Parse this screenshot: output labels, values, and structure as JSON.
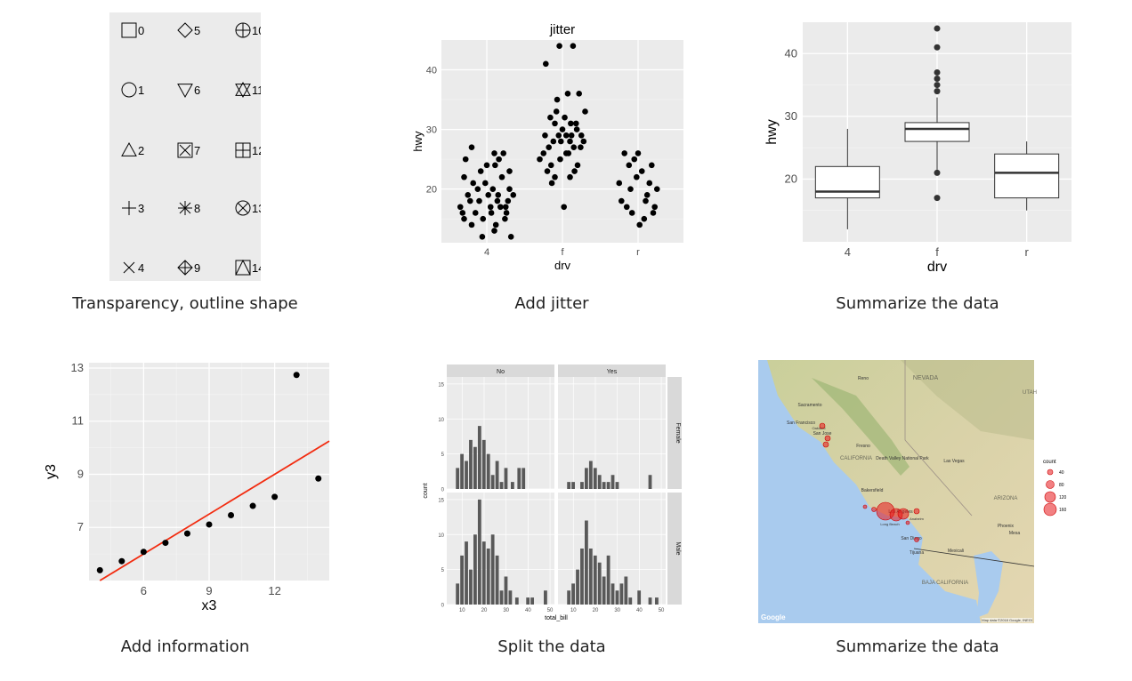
{
  "captions": {
    "shapes": "Transparency, outline shape",
    "jitter": "Add jitter",
    "boxplot": "Summarize the data",
    "regression": "Add information",
    "facets": "Split the data",
    "map": "Summarize the data"
  },
  "chart_data": [
    {
      "id": "shapes",
      "type": "table",
      "shape_codes": [
        "0",
        "1",
        "2",
        "3",
        "4",
        "5",
        "6",
        "7",
        "8",
        "9",
        "10",
        "11",
        "12",
        "13",
        "14"
      ],
      "columns": [
        [
          "0",
          "1",
          "2",
          "3",
          "4"
        ],
        [
          "5",
          "6",
          "7",
          "8",
          "9"
        ],
        [
          "10",
          "11",
          "12",
          "13",
          "14"
        ]
      ]
    },
    {
      "id": "jitter",
      "type": "scatter",
      "title": "jitter",
      "xlabel": "drv",
      "ylabel": "hwy",
      "categories": [
        "4",
        "f",
        "r"
      ],
      "yticks": [
        "20",
        "30",
        "40"
      ],
      "ylim": [
        11,
        45
      ],
      "points": [
        [
          0.0,
          24
        ],
        [
          0.1,
          26
        ],
        [
          -0.2,
          27
        ],
        [
          0.25,
          17
        ],
        [
          -0.3,
          15
        ],
        [
          0.15,
          19
        ],
        [
          -0.1,
          18
        ],
        [
          0.05,
          17
        ],
        [
          0.3,
          20
        ],
        [
          -0.25,
          19
        ],
        [
          0.2,
          22
        ],
        [
          -0.15,
          16
        ],
        [
          0.12,
          14
        ],
        [
          -0.05,
          15
        ],
        [
          0.28,
          18
        ],
        [
          -0.32,
          16
        ],
        [
          0.08,
          20
        ],
        [
          -0.18,
          21
        ],
        [
          0.18,
          17
        ],
        [
          0.02,
          19
        ],
        [
          -0.28,
          25
        ],
        [
          0.22,
          26
        ],
        [
          -0.08,
          23
        ],
        [
          0.32,
          12
        ],
        [
          0.1,
          13
        ],
        [
          -0.2,
          14
        ],
        [
          0.26,
          16
        ],
        [
          -0.12,
          20
        ],
        [
          0.14,
          18
        ],
        [
          -0.35,
          17
        ],
        [
          0.35,
          19
        ],
        [
          -0.02,
          21
        ],
        [
          0.06,
          16
        ],
        [
          -0.22,
          18
        ],
        [
          0.24,
          15
        ],
        [
          0.16,
          25
        ],
        [
          -0.3,
          22
        ],
        [
          0.3,
          23
        ],
        [
          -0.06,
          12
        ],
        [
          0.11,
          24
        ],
        [
          0.95,
          29
        ],
        [
          1.05,
          26
        ],
        [
          0.9,
          31
        ],
        [
          1.1,
          28
        ],
        [
          0.85,
          24
        ],
        [
          1.15,
          27
        ],
        [
          1.0,
          30
        ],
        [
          0.92,
          33
        ],
        [
          1.08,
          26
        ],
        [
          0.88,
          28
        ],
        [
          1.12,
          29
        ],
        [
          0.97,
          25
        ],
        [
          1.03,
          32
        ],
        [
          0.82,
          27
        ],
        [
          1.18,
          31
        ],
        [
          1.2,
          24
        ],
        [
          0.8,
          23
        ],
        [
          1.25,
          29
        ],
        [
          0.75,
          26
        ],
        [
          1.28,
          28
        ],
        [
          0.7,
          25
        ],
        [
          1.3,
          33
        ],
        [
          0.93,
          35
        ],
        [
          1.07,
          36
        ],
        [
          0.96,
          44
        ],
        [
          1.14,
          44
        ],
        [
          0.78,
          41
        ],
        [
          1.22,
          36
        ],
        [
          0.9,
          22
        ],
        [
          1.1,
          22
        ],
        [
          1.02,
          17
        ],
        [
          0.86,
          21
        ],
        [
          1.16,
          23
        ],
        [
          1.05,
          29
        ],
        [
          0.98,
          28
        ],
        [
          1.19,
          30
        ],
        [
          0.84,
          32
        ],
        [
          1.24,
          27
        ],
        [
          0.77,
          29
        ],
        [
          1.11,
          31
        ],
        [
          1.95,
          25
        ],
        [
          2.05,
          23
        ],
        [
          1.9,
          20
        ],
        [
          2.1,
          18
        ],
        [
          1.85,
          17
        ],
        [
          2.15,
          21
        ],
        [
          2.0,
          26
        ],
        [
          1.92,
          16
        ],
        [
          2.08,
          15
        ],
        [
          1.88,
          24
        ],
        [
          2.12,
          19
        ],
        [
          1.98,
          22
        ],
        [
          2.18,
          24
        ],
        [
          1.82,
          26
        ],
        [
          2.22,
          17
        ],
        [
          1.78,
          18
        ],
        [
          2.25,
          20
        ],
        [
          1.75,
          21
        ],
        [
          2.02,
          14
        ],
        [
          2.2,
          16
        ]
      ]
    },
    {
      "id": "boxplot",
      "type": "box",
      "xlabel": "drv",
      "ylabel": "hwy",
      "categories": [
        "4",
        "f",
        "r"
      ],
      "yticks": [
        "20",
        "30",
        "40"
      ],
      "ylim": [
        10,
        45
      ],
      "boxes": [
        {
          "lower": 12,
          "q1": 17,
          "median": 18,
          "q3": 22,
          "upper": 28,
          "outliers": []
        },
        {
          "lower": 21,
          "q1": 26,
          "median": 28,
          "q3": 29,
          "upper": 33,
          "outliers": [
            17,
            21,
            35,
            36,
            37,
            41,
            44,
            34
          ]
        },
        {
          "lower": 15,
          "q1": 17,
          "median": 21,
          "q3": 24,
          "upper": 26,
          "outliers": []
        }
      ]
    },
    {
      "id": "regression",
      "type": "scatter",
      "xlabel": "x3",
      "ylabel": "y3",
      "xticks": [
        "6",
        "9",
        "12"
      ],
      "yticks": [
        "7",
        "9",
        "11",
        "13"
      ],
      "xlim": [
        3.5,
        14.5
      ],
      "ylim": [
        5,
        13.2
      ],
      "x": [
        4,
        5,
        6,
        7,
        8,
        9,
        10,
        11,
        12,
        13,
        14
      ],
      "y": [
        5.39,
        5.73,
        6.08,
        6.42,
        6.77,
        7.11,
        7.46,
        7.81,
        8.15,
        12.74,
        8.84
      ],
      "fit": {
        "intercept": 3.0,
        "slope": 0.5
      }
    },
    {
      "id": "facets",
      "type": "bar",
      "xlabel": "total_bill",
      "ylabel": "count",
      "col_strips": [
        "No",
        "Yes"
      ],
      "row_strips": [
        "Female",
        "Male"
      ],
      "xticks": [
        "10",
        "20",
        "30",
        "40",
        "50"
      ],
      "yticks": [
        "0",
        "5",
        "10",
        "15"
      ],
      "xlim": [
        3,
        52
      ],
      "ylim": [
        0,
        16
      ],
      "bin_width": 1.7,
      "panels": [
        {
          "row": 0,
          "col": 0,
          "bins": [
            [
              8,
              3
            ],
            [
              10,
              5
            ],
            [
              12,
              4
            ],
            [
              14,
              7
            ],
            [
              16,
              6
            ],
            [
              18,
              9
            ],
            [
              20,
              7
            ],
            [
              22,
              5
            ],
            [
              24,
              2
            ],
            [
              26,
              4
            ],
            [
              28,
              1
            ],
            [
              30,
              3
            ],
            [
              33,
              1
            ],
            [
              36,
              3
            ],
            [
              38,
              3
            ]
          ]
        },
        {
          "row": 0,
          "col": 1,
          "bins": [
            [
              8,
              1
            ],
            [
              10,
              1
            ],
            [
              14,
              1
            ],
            [
              16,
              3
            ],
            [
              18,
              4
            ],
            [
              20,
              3
            ],
            [
              22,
              2
            ],
            [
              24,
              1
            ],
            [
              26,
              1
            ],
            [
              28,
              2
            ],
            [
              30,
              1
            ],
            [
              45,
              2
            ]
          ]
        },
        {
          "row": 1,
          "col": 0,
          "bins": [
            [
              8,
              3
            ],
            [
              10,
              7
            ],
            [
              12,
              9
            ],
            [
              14,
              5
            ],
            [
              16,
              10
            ],
            [
              18,
              15
            ],
            [
              20,
              9
            ],
            [
              22,
              8
            ],
            [
              24,
              10
            ],
            [
              26,
              7
            ],
            [
              28,
              2
            ],
            [
              30,
              4
            ],
            [
              32,
              2
            ],
            [
              35,
              1
            ],
            [
              40,
              1
            ],
            [
              42,
              1
            ],
            [
              48,
              2
            ]
          ]
        },
        {
          "row": 1,
          "col": 1,
          "bins": [
            [
              8,
              2
            ],
            [
              10,
              3
            ],
            [
              12,
              5
            ],
            [
              14,
              8
            ],
            [
              16,
              12
            ],
            [
              18,
              8
            ],
            [
              20,
              7
            ],
            [
              22,
              6
            ],
            [
              24,
              4
            ],
            [
              26,
              7
            ],
            [
              28,
              3
            ],
            [
              30,
              2
            ],
            [
              32,
              3
            ],
            [
              34,
              4
            ],
            [
              36,
              1
            ],
            [
              40,
              2
            ],
            [
              45,
              1
            ],
            [
              48,
              1
            ]
          ]
        }
      ]
    },
    {
      "id": "map",
      "type": "scatter",
      "legend_title": "count",
      "legend_values": [
        "40",
        "80",
        "120",
        "160"
      ],
      "place_labels": [
        "NEVADA",
        "Reno",
        "Sacramento",
        "San Francisco",
        "San Jose",
        "Oakland",
        "Fresno",
        "CALIFORNIA",
        "Death Valley National Park",
        "Las Vegas",
        "Bakersfield",
        "Los Angeles",
        "Long Beach",
        "Anaheim",
        "San Diego",
        "Tijuana",
        "Mexicali",
        "BAJA CALIFORNIA",
        "ARIZONA",
        "Phoenix",
        "Mesa",
        "UTAH"
      ],
      "attribution": "Map data ©2018 Google, INEGI",
      "logo": "Google"
    }
  ]
}
